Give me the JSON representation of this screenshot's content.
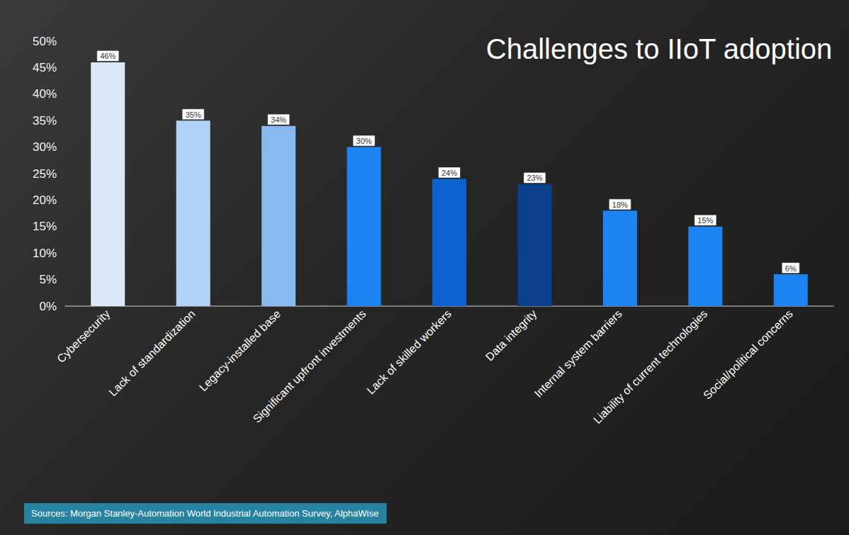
{
  "chart_data": {
    "type": "bar",
    "title": "Challenges to IIoT adoption",
    "categories": [
      "Cybersecurity",
      "Lack of standardization",
      "Legacy-installed base",
      "Significant upfront investments",
      "Lack of skilled workers",
      "Data integrity",
      "Internal system barriers",
      "Liability of current technologies",
      "Social/political concerns"
    ],
    "values": [
      46,
      35,
      34,
      30,
      24,
      23,
      18,
      15,
      6
    ],
    "value_labels": [
      "46%",
      "35%",
      "34%",
      "30%",
      "24%",
      "23%",
      "18%",
      "15%",
      "6%"
    ],
    "colors": [
      "#dce9fb",
      "#b3d2f8",
      "#88baf1",
      "#1c84f0",
      "#0c63cf",
      "#0a3f8e",
      "#1c84f0",
      "#1c84f0",
      "#1c84f0"
    ],
    "ylim": [
      0,
      50
    ],
    "yticks": [
      {
        "value": 0,
        "label": "0%"
      },
      {
        "value": 5,
        "label": "5%"
      },
      {
        "value": 10,
        "label": "10%"
      },
      {
        "value": 15,
        "label": "15%"
      },
      {
        "value": 20,
        "label": "20%"
      },
      {
        "value": 25,
        "label": "25%"
      },
      {
        "value": 30,
        "label": "30%"
      },
      {
        "value": 35,
        "label": "35%"
      },
      {
        "value": 40,
        "label": "40%"
      },
      {
        "value": 45,
        "label": "45%"
      },
      {
        "value": 50,
        "label": "50%"
      }
    ],
    "grid": false,
    "data_labels": true,
    "annotations": [
      "Sources: Morgan Stanley-Automation World Industrial Automation Survey, AlphaWise"
    ]
  }
}
